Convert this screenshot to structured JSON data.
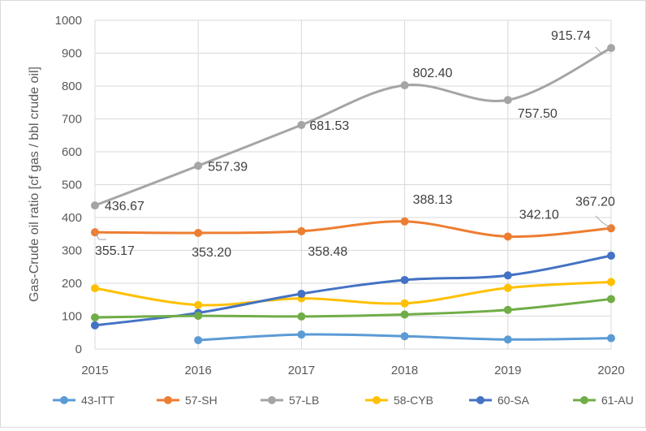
{
  "chart_data": {
    "type": "line",
    "title": "",
    "xlabel": "",
    "ylabel": "Gas-Crude oil ratio [cf gas / bbl crude oil]",
    "x": [
      "2015",
      "2016",
      "2017",
      "2018",
      "2019",
      "2020"
    ],
    "ylim": [
      0,
      1000
    ],
    "yticks": [
      "0",
      "100",
      "200",
      "300",
      "400",
      "500",
      "600",
      "700",
      "800",
      "900",
      "1000"
    ],
    "grid": true,
    "legend_position": "bottom",
    "series": [
      {
        "name": "43-ITT",
        "color": "#5b9bd5",
        "values": [
          null,
          27,
          44,
          39,
          29,
          33
        ],
        "labels": []
      },
      {
        "name": "57-SH",
        "color": "#ed7d31",
        "values": [
          355.17,
          353.2,
          358.48,
          388.13,
          342.1,
          367.2
        ],
        "labels": [
          "355.17",
          "353.20",
          "358.48",
          "388.13",
          "342.10",
          "367.20"
        ]
      },
      {
        "name": "57-LB",
        "color": "#a5a5a5",
        "values": [
          436.67,
          557.39,
          681.53,
          802.4,
          757.5,
          915.74
        ],
        "labels": [
          "436.67",
          "557.39",
          "681.53",
          "802.40",
          "757.50",
          "915.74"
        ]
      },
      {
        "name": "58-CYB",
        "color": "#ffc000",
        "values": [
          185,
          134,
          154,
          139,
          186,
          204
        ],
        "labels": []
      },
      {
        "name": "60-SA",
        "color": "#4472c4",
        "values": [
          72,
          110,
          168,
          210,
          224,
          284
        ],
        "labels": []
      },
      {
        "name": "61-AU",
        "color": "#70ad47",
        "values": [
          96,
          101,
          99,
          105,
          119,
          152
        ],
        "labels": []
      }
    ]
  }
}
